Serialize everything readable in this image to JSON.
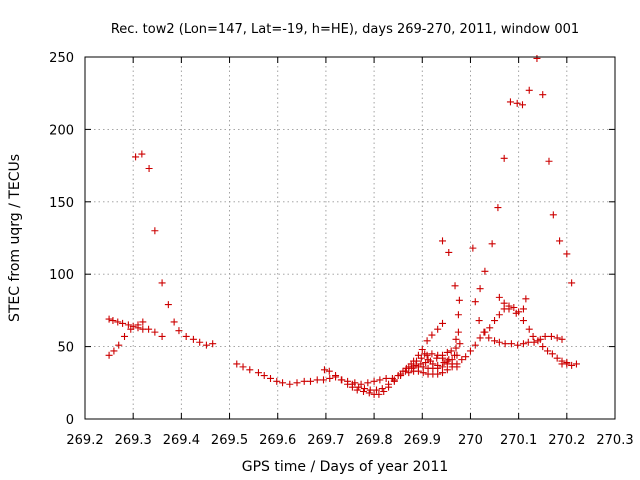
{
  "chart_data": {
    "type": "scatter",
    "title": "Rec. tow2 (Lon=147, Lat=-19, h=HE), days 269-270, 2011, window 001",
    "xlabel": "GPS time / Days of year 2011",
    "ylabel": "STEC from uqrg / TECUs",
    "xlim": [
      269.2,
      270.3
    ],
    "ylim": [
      0,
      250
    ],
    "x_ticks": [
      269.2,
      269.3,
      269.4,
      269.5,
      269.6,
      269.7,
      269.8,
      269.9,
      270.0,
      270.1,
      270.2,
      270.3
    ],
    "x_tick_labels": [
      "269.2",
      "269.3",
      "269.4",
      "269.5",
      "269.6",
      "269.7",
      "269.8",
      "269.9",
      "270",
      "270.1",
      "270.2",
      "270.3"
    ],
    "y_ticks": [
      0,
      50,
      100,
      150,
      200,
      250
    ],
    "y_tick_labels": [
      "0",
      "50",
      "100",
      "150",
      "200",
      "250"
    ],
    "grid": true,
    "marker": "+",
    "color": "#cc0000",
    "series": [
      {
        "points": [
          [
            269.25,
            69
          ],
          [
            269.258,
            68
          ],
          [
            269.268,
            67
          ],
          [
            269.278,
            66
          ],
          [
            269.29,
            65
          ],
          [
            269.3,
            64
          ],
          [
            269.31,
            63
          ],
          [
            269.32,
            62
          ],
          [
            269.332,
            62
          ],
          [
            269.345,
            60
          ],
          [
            269.36,
            57
          ],
          [
            269.25,
            44
          ],
          [
            269.26,
            47
          ],
          [
            269.27,
            51
          ],
          [
            269.282,
            57
          ],
          [
            269.295,
            62
          ],
          [
            269.31,
            65
          ],
          [
            269.32,
            67
          ],
          [
            269.305,
            181
          ],
          [
            269.318,
            183
          ],
          [
            269.333,
            173
          ],
          [
            269.345,
            130
          ],
          [
            269.36,
            94
          ],
          [
            269.373,
            79
          ],
          [
            269.385,
            67
          ],
          [
            269.395,
            61
          ],
          [
            269.41,
            57
          ],
          [
            269.425,
            55
          ],
          [
            269.438,
            53
          ],
          [
            269.452,
            51
          ],
          [
            269.465,
            52
          ],
          [
            269.515,
            38
          ],
          [
            269.528,
            36
          ],
          [
            269.542,
            34
          ],
          [
            269.56,
            32
          ],
          [
            269.572,
            30
          ],
          [
            269.585,
            28
          ],
          [
            269.598,
            26
          ],
          [
            269.61,
            25
          ],
          [
            269.625,
            24
          ],
          [
            269.64,
            25
          ],
          [
            269.655,
            26
          ],
          [
            269.668,
            26
          ],
          [
            269.682,
            27
          ],
          [
            269.695,
            27
          ],
          [
            269.708,
            28
          ],
          [
            269.72,
            29
          ],
          [
            269.733,
            27
          ],
          [
            269.745,
            26
          ],
          [
            269.76,
            25
          ],
          [
            269.773,
            24
          ],
          [
            269.787,
            25
          ],
          [
            269.8,
            26
          ],
          [
            269.812,
            27
          ],
          [
            269.825,
            28
          ],
          [
            269.838,
            28
          ],
          [
            269.85,
            30
          ],
          [
            269.86,
            33
          ],
          [
            269.872,
            36
          ],
          [
            269.882,
            40
          ],
          [
            269.892,
            44
          ],
          [
            269.9,
            48
          ],
          [
            269.91,
            54
          ],
          [
            269.92,
            58
          ],
          [
            269.932,
            62
          ],
          [
            269.942,
            66
          ],
          [
            269.697,
            34
          ],
          [
            269.707,
            33
          ],
          [
            269.72,
            30
          ],
          [
            269.732,
            27
          ],
          [
            269.745,
            24
          ],
          [
            269.755,
            22
          ],
          [
            269.765,
            20
          ],
          [
            269.778,
            19
          ],
          [
            269.79,
            18
          ],
          [
            269.8,
            17
          ],
          [
            269.81,
            17
          ],
          [
            269.82,
            19
          ],
          [
            269.83,
            22
          ],
          [
            269.842,
            26
          ],
          [
            269.855,
            30
          ],
          [
            269.865,
            33
          ],
          [
            269.878,
            35
          ],
          [
            269.887,
            37
          ],
          [
            269.897,
            38
          ],
          [
            269.907,
            39
          ],
          [
            269.917,
            40
          ],
          [
            269.93,
            42
          ],
          [
            269.942,
            44
          ],
          [
            269.952,
            46
          ],
          [
            269.96,
            47
          ],
          [
            269.97,
            49
          ],
          [
            269.755,
            24
          ],
          [
            269.768,
            22
          ],
          [
            269.78,
            21
          ],
          [
            269.792,
            20
          ],
          [
            269.805,
            20
          ],
          [
            269.817,
            21
          ],
          [
            269.83,
            24
          ],
          [
            269.842,
            27
          ],
          [
            269.855,
            31
          ],
          [
            269.867,
            35
          ],
          [
            269.877,
            38
          ],
          [
            269.888,
            40
          ],
          [
            269.898,
            42
          ],
          [
            269.91,
            44
          ],
          [
            269.92,
            45
          ],
          [
            269.932,
            44
          ],
          [
            269.942,
            42
          ],
          [
            269.952,
            40
          ],
          [
            269.962,
            38
          ],
          [
            269.972,
            36
          ],
          [
            269.872,
            32
          ],
          [
            269.882,
            33
          ],
          [
            269.892,
            33
          ],
          [
            269.902,
            32
          ],
          [
            269.912,
            31
          ],
          [
            269.922,
            31
          ],
          [
            269.932,
            31
          ],
          [
            269.942,
            32
          ],
          [
            269.952,
            34
          ],
          [
            269.962,
            36
          ],
          [
            269.972,
            38
          ],
          [
            269.982,
            41
          ],
          [
            269.882,
            36
          ],
          [
            269.892,
            36
          ],
          [
            269.902,
            36
          ],
          [
            269.912,
            35
          ],
          [
            269.922,
            35
          ],
          [
            269.932,
            35
          ],
          [
            269.942,
            36
          ],
          [
            269.952,
            38
          ],
          [
            269.962,
            41
          ],
          [
            269.972,
            44
          ],
          [
            269.942,
            123
          ],
          [
            269.955,
            115
          ],
          [
            269.968,
            92
          ],
          [
            269.977,
            82
          ],
          [
            269.975,
            72
          ],
          [
            269.975,
            60
          ],
          [
            269.97,
            55
          ],
          [
            269.978,
            52
          ],
          [
            269.905,
            45
          ],
          [
            269.912,
            41
          ],
          [
            269.922,
            38
          ],
          [
            269.932,
            37
          ],
          [
            269.945,
            39
          ],
          [
            269.955,
            41
          ],
          [
            269.967,
            44
          ],
          [
            270.005,
            118
          ],
          [
            270.01,
            81
          ],
          [
            270.018,
            68
          ],
          [
            270.028,
            60
          ],
          [
            270.038,
            56
          ],
          [
            270.05,
            54
          ],
          [
            270.06,
            53
          ],
          [
            270.072,
            52
          ],
          [
            270.085,
            52
          ],
          [
            270.098,
            51
          ],
          [
            270.11,
            52
          ],
          [
            270.12,
            53
          ],
          [
            270.132,
            53
          ],
          [
            270.145,
            55
          ],
          [
            270.155,
            57
          ],
          [
            270.168,
            57
          ],
          [
            270.18,
            56
          ],
          [
            270.19,
            55
          ],
          [
            269.99,
            43
          ],
          [
            270.0,
            47
          ],
          [
            270.01,
            51
          ],
          [
            270.02,
            56
          ],
          [
            270.03,
            60
          ],
          [
            270.04,
            63
          ],
          [
            270.05,
            68
          ],
          [
            270.06,
            72
          ],
          [
            270.07,
            76
          ],
          [
            270.08,
            78
          ],
          [
            270.09,
            77
          ],
          [
            270.1,
            74
          ],
          [
            270.11,
            68
          ],
          [
            270.122,
            62
          ],
          [
            270.13,
            57
          ],
          [
            270.14,
            54
          ],
          [
            270.15,
            50
          ],
          [
            270.16,
            47
          ],
          [
            270.17,
            45
          ],
          [
            270.18,
            42
          ],
          [
            270.19,
            40
          ],
          [
            270.2,
            38
          ],
          [
            270.21,
            37
          ],
          [
            270.22,
            38
          ],
          [
            270.03,
            102
          ],
          [
            270.02,
            90
          ],
          [
            270.045,
            121
          ],
          [
            270.057,
            146
          ],
          [
            270.07,
            180
          ],
          [
            270.083,
            219
          ],
          [
            270.097,
            218
          ],
          [
            270.108,
            217
          ],
          [
            270.122,
            227
          ],
          [
            270.138,
            249
          ],
          [
            270.15,
            224
          ],
          [
            270.163,
            178
          ],
          [
            270.172,
            141
          ],
          [
            270.185,
            123
          ],
          [
            270.2,
            114
          ],
          [
            270.21,
            94
          ],
          [
            270.06,
            84
          ],
          [
            270.07,
            80
          ],
          [
            270.08,
            76
          ],
          [
            270.095,
            73
          ],
          [
            270.11,
            76
          ],
          [
            270.115,
            83
          ],
          [
            270.19,
            38
          ],
          [
            270.2,
            39
          ]
        ]
      }
    ]
  }
}
